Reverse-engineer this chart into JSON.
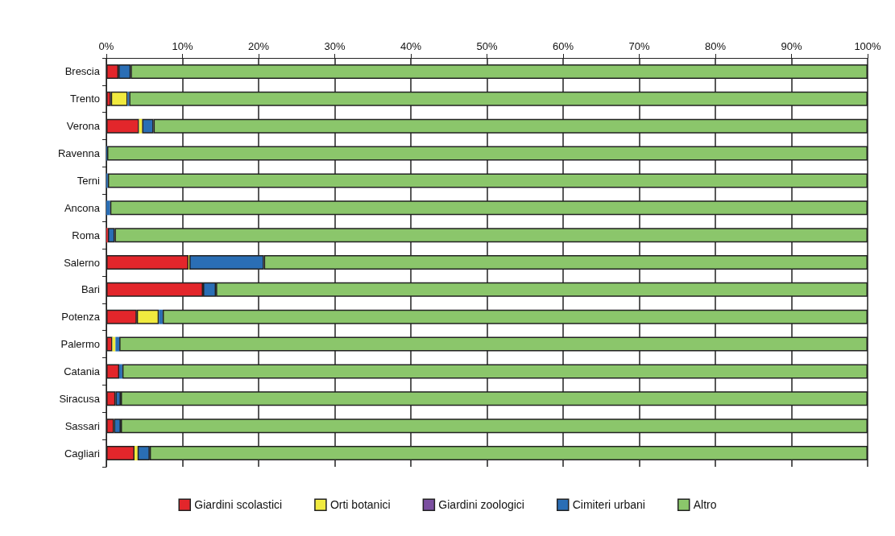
{
  "chart_data": {
    "type": "bar",
    "orientation": "horizontal",
    "stacked": true,
    "categories": [
      "Brescia",
      "Trento",
      "Verona",
      "Ravenna",
      "Terni",
      "Ancona",
      "Roma",
      "Salerno",
      "Bari",
      "Potenza",
      "Palermo",
      "Catania",
      "Siracusa",
      "Sassari",
      "Cagliari"
    ],
    "series": [
      {
        "name": "Giardini scolastici",
        "color": "#e3262b",
        "values": [
          1.6,
          0.6,
          4.3,
          0,
          0,
          0,
          0.2,
          10.8,
          12.7,
          4.0,
          0.8,
          1.7,
          1.2,
          1.0,
          3.7
        ]
      },
      {
        "name": "Orti botanici",
        "color": "#f0ea3f",
        "values": [
          0,
          2.2,
          0.4,
          0,
          0,
          0,
          0,
          0.1,
          0,
          2.9,
          0.4,
          0,
          0,
          0,
          0.4
        ]
      },
      {
        "name": "Giardini zoologici",
        "color": "#7b4fa0",
        "values": [
          0,
          0,
          0,
          0,
          0,
          0,
          0,
          0,
          0,
          0,
          0,
          0,
          0,
          0,
          0
        ]
      },
      {
        "name": "Cimiteri urbani",
        "color": "#2a6eb5",
        "values": [
          1.6,
          0.2,
          1.5,
          0.1,
          0.2,
          0.5,
          0.9,
          9.8,
          1.7,
          0.5,
          0.5,
          0.4,
          0.7,
          0.9,
          1.6
        ]
      },
      {
        "name": "Altro",
        "color": "#8bc66b",
        "values": [
          96.8,
          97.0,
          93.8,
          99.9,
          99.8,
          99.5,
          98.9,
          79.3,
          85.6,
          92.6,
          98.3,
          97.9,
          98.1,
          98.1,
          94.3
        ]
      }
    ],
    "xlim": [
      0,
      100
    ],
    "xticks": [
      {
        "value": 0,
        "label": "0%"
      },
      {
        "value": 10,
        "label": "10%"
      },
      {
        "value": 20,
        "label": "20%"
      },
      {
        "value": 30,
        "label": "30%"
      },
      {
        "value": 40,
        "label": "40%"
      },
      {
        "value": 50,
        "label": "50%"
      },
      {
        "value": 60,
        "label": "60%"
      },
      {
        "value": 70,
        "label": "70%"
      },
      {
        "value": 80,
        "label": "80%"
      },
      {
        "value": 90,
        "label": "90%"
      },
      {
        "value": 100,
        "label": "100%"
      }
    ],
    "grid": "x",
    "legend": "bottom"
  }
}
